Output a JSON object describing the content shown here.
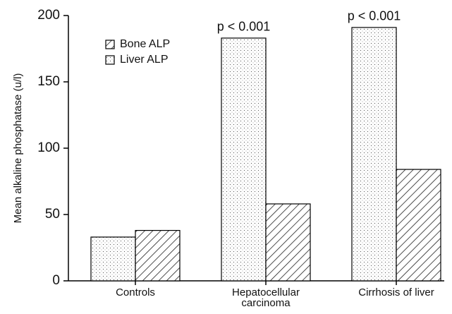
{
  "chart_data": {
    "type": "bar",
    "y_label": "Mean alkaline phosphatase (u/l)",
    "categories": [
      "Controls",
      "Hepatocellular carcinoma",
      "Cirrhosis of liver"
    ],
    "series": [
      {
        "name": "Liver ALP",
        "color": "#000000",
        "pattern": "dots",
        "values": [
          33,
          183,
          191
        ]
      },
      {
        "name": "Bone ALP",
        "color": "#000000",
        "pattern": "hatch",
        "values": [
          38,
          58,
          84
        ]
      }
    ],
    "annotations": [
      "p < 0.001",
      "p < 0.001"
    ],
    "ylim": [
      0,
      200
    ],
    "yticks": [
      0,
      50,
      100,
      150,
      200
    ],
    "legend": "upper left"
  }
}
